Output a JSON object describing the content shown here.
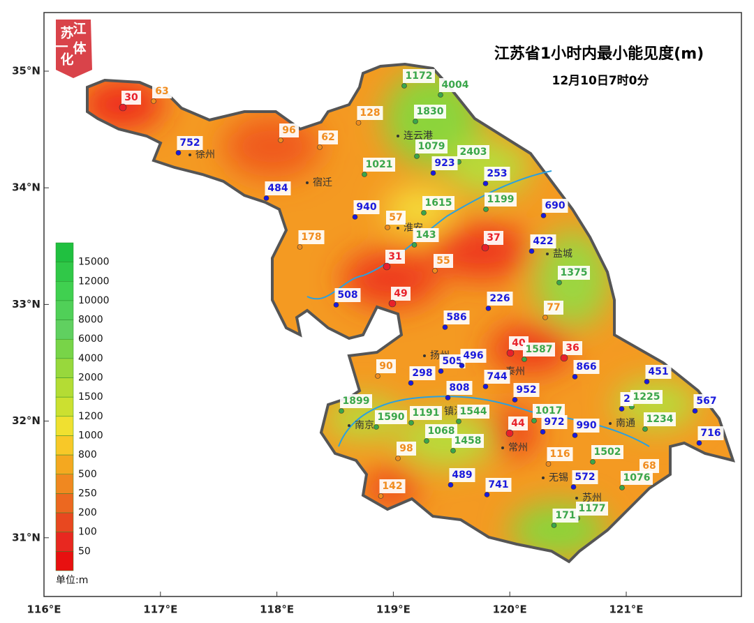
{
  "title": "江苏省1小时内最小能见度(m)",
  "subtitle": "12月10日7时0分",
  "logo": [
    "江",
    "苏",
    "一",
    "体",
    "化"
  ],
  "lat_labels": [
    "35°N",
    "34°N",
    "33°N",
    "32°N",
    "31°N"
  ],
  "lon_labels": [
    "116°E",
    "117°E",
    "118°E",
    "119°E",
    "120°E",
    "121°E"
  ],
  "legend": {
    "unit": "单位:m",
    "labels": [
      "15000",
      "12000",
      "10000",
      "8000",
      "6000",
      "4000",
      "2000",
      "1500",
      "1200",
      "1000",
      "800",
      "500",
      "250",
      "200",
      "100",
      "50"
    ]
  },
  "cities": [
    "徐州",
    "宿迁",
    "连云港",
    "淮安",
    "盐城",
    "扬州",
    "泰州",
    "镇江",
    "南京",
    "常州",
    "无锡",
    "苏州",
    "南通"
  ],
  "stations": [
    {
      "value": "30",
      "color": "#e8202a"
    },
    {
      "value": "63",
      "color": "#f08c1e"
    },
    {
      "value": "752",
      "color": "#1a1adc"
    },
    {
      "value": "96",
      "color": "#f08c1e"
    },
    {
      "value": "62",
      "color": "#f08c1e"
    },
    {
      "value": "128",
      "color": "#f08c1e"
    },
    {
      "value": "484",
      "color": "#1a1adc"
    },
    {
      "value": "1172",
      "color": "#3aa64a"
    },
    {
      "value": "4004",
      "color": "#3aa64a"
    },
    {
      "value": "1830",
      "color": "#3aa64a"
    },
    {
      "value": "1079",
      "color": "#3aa64a"
    },
    {
      "value": "2403",
      "color": "#3aa64a"
    },
    {
      "value": "923",
      "color": "#1a1adc"
    },
    {
      "value": "1021",
      "color": "#3aa64a"
    },
    {
      "value": "253",
      "color": "#1a1adc"
    },
    {
      "value": "1615",
      "color": "#3aa64a"
    },
    {
      "value": "1199",
      "color": "#3aa64a"
    },
    {
      "value": "690",
      "color": "#1a1adc"
    },
    {
      "value": "940",
      "color": "#1a1adc"
    },
    {
      "value": "57",
      "color": "#f08c1e"
    },
    {
      "value": "178",
      "color": "#f08c1e"
    },
    {
      "value": "143",
      "color": "#3aa64a"
    },
    {
      "value": "37",
      "color": "#e8202a"
    },
    {
      "value": "422",
      "color": "#1a1adc"
    },
    {
      "value": "31",
      "color": "#e8202a"
    },
    {
      "value": "55",
      "color": "#f08c1e"
    },
    {
      "value": "1375",
      "color": "#3aa64a"
    },
    {
      "value": "508",
      "color": "#1a1adc"
    },
    {
      "value": "49",
      "color": "#e8202a"
    },
    {
      "value": "226",
      "color": "#1a1adc"
    },
    {
      "value": "586",
      "color": "#1a1adc"
    },
    {
      "value": "77",
      "color": "#f08c1e"
    },
    {
      "value": "40",
      "color": "#e8202a"
    },
    {
      "value": "1587",
      "color": "#3aa64a"
    },
    {
      "value": "36",
      "color": "#e8202a"
    },
    {
      "value": "90",
      "color": "#f08c1e"
    },
    {
      "value": "505",
      "color": "#1a1adc"
    },
    {
      "value": "496",
      "color": "#1a1adc"
    },
    {
      "value": "298",
      "color": "#1a1adc"
    },
    {
      "value": "866",
      "color": "#1a1adc"
    },
    {
      "value": "451",
      "color": "#1a1adc"
    },
    {
      "value": "744",
      "color": "#1a1adc"
    },
    {
      "value": "808",
      "color": "#1a1adc"
    },
    {
      "value": "952",
      "color": "#1a1adc"
    },
    {
      "value": "1899",
      "color": "#3aa64a"
    },
    {
      "value": "1225",
      "color": "#3aa64a"
    },
    {
      "value": "2",
      "color": "#1a1adc"
    },
    {
      "value": "567",
      "color": "#1a1adc"
    },
    {
      "value": "1590",
      "color": "#3aa64a"
    },
    {
      "value": "1191",
      "color": "#3aa64a"
    },
    {
      "value": "1544",
      "color": "#3aa64a"
    },
    {
      "value": "1017",
      "color": "#3aa64a"
    },
    {
      "value": "972",
      "color": "#1a1adc"
    },
    {
      "value": "990",
      "color": "#1a1adc"
    },
    {
      "value": "1234",
      "color": "#3aa64a"
    },
    {
      "value": "1068",
      "color": "#3aa64a"
    },
    {
      "value": "44",
      "color": "#e8202a"
    },
    {
      "value": "716",
      "color": "#1a1adc"
    },
    {
      "value": "1458",
      "color": "#3aa64a"
    },
    {
      "value": "98",
      "color": "#f08c1e"
    },
    {
      "value": "1502",
      "color": "#3aa64a"
    },
    {
      "value": "116",
      "color": "#f08c1e"
    },
    {
      "value": "68",
      "color": "#f08c1e"
    },
    {
      "value": "489",
      "color": "#1a1adc"
    },
    {
      "value": "572",
      "color": "#1a1adc"
    },
    {
      "value": "1076",
      "color": "#3aa64a"
    },
    {
      "value": "142",
      "color": "#f08c1e"
    },
    {
      "value": "741",
      "color": "#1a1adc"
    },
    {
      "value": "1177",
      "color": "#3aa64a"
    },
    {
      "value": "171",
      "color": "#3aa64a"
    }
  ]
}
